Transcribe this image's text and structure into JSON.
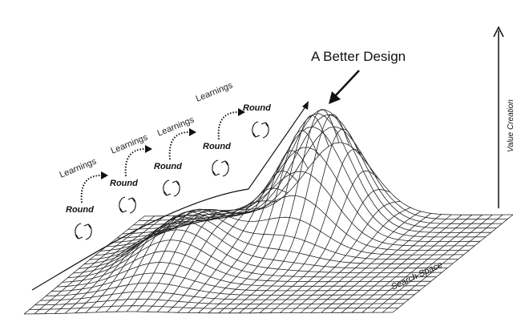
{
  "title": "A Better Design",
  "y_axis_label": "Value Creation",
  "x_axis_label": "Search Space",
  "rounds": [
    "Round",
    "Round",
    "Round",
    "Round",
    "Round"
  ],
  "learnings": [
    "Learnings",
    "Learnings",
    "Learnings",
    "Learnings"
  ],
  "icons": {
    "cycle": "cycle-arrows-icon",
    "dotted": "dotted-arrow-icon"
  }
}
